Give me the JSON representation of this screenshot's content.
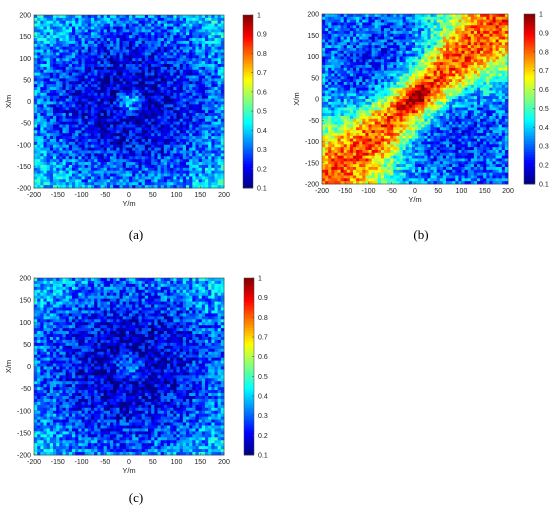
{
  "chart_data": [
    {
      "type": "heatmap",
      "panel_label": "(a)",
      "xlabel": "Y/m",
      "ylabel": "X/m",
      "xlim": [
        -200,
        200
      ],
      "ylim": [
        -200,
        200
      ],
      "xticks": [
        "-200",
        "-150",
        "-100",
        "-50",
        "0",
        "50",
        "100",
        "150",
        "200"
      ],
      "yticks": [
        "200",
        "150",
        "100",
        "50",
        "0",
        "-50",
        "-100",
        "-150",
        "-200"
      ],
      "colorbar": {
        "range": [
          0.1,
          1
        ],
        "ticks": [
          "1",
          "0.9",
          "0.8",
          "0.7",
          "0.6",
          "0.5",
          "0.4",
          "0.3",
          "0.2",
          "0.1"
        ],
        "colormap": "jet"
      },
      "pattern": "radial",
      "center_value": 0.42,
      "dark_ring_value": 0.15,
      "edge_value": 0.4,
      "noise": 0.12
    },
    {
      "type": "heatmap",
      "panel_label": "(b)",
      "xlabel": "Y/m",
      "ylabel": "X/m",
      "xlim": [
        -200,
        200
      ],
      "ylim": [
        -200,
        200
      ],
      "xticks": [
        "-200",
        "-150",
        "-100",
        "-50",
        "0",
        "50",
        "100",
        "150",
        "200"
      ],
      "yticks": [
        "200",
        "150",
        "100",
        "50",
        "0",
        "-50",
        "-100",
        "-150",
        "-200"
      ],
      "colorbar": {
        "range": [
          0.1,
          1
        ],
        "ticks": [
          "1",
          "0.9",
          "0.8",
          "0.7",
          "0.6",
          "0.5",
          "0.4",
          "0.3",
          "0.2",
          "0.1"
        ],
        "colormap": "jet"
      },
      "pattern": "diagonal",
      "center_value": 1.0,
      "band_value": 0.82,
      "background_value": 0.3,
      "noise": 0.12
    },
    {
      "type": "heatmap",
      "panel_label": "(c)",
      "xlabel": "Y/m",
      "ylabel": "X/m",
      "xlim": [
        -200,
        200
      ],
      "ylim": [
        -200,
        200
      ],
      "xticks": [
        "-200",
        "-150",
        "-100",
        "-50",
        "0",
        "50",
        "100",
        "150",
        "200"
      ],
      "yticks": [
        "200",
        "150",
        "100",
        "50",
        "0",
        "-50",
        "-100",
        "-150",
        "-200"
      ],
      "colorbar": {
        "range": [
          0.1,
          1
        ],
        "ticks": [
          "1",
          "0.9",
          "0.8",
          "0.7",
          "0.6",
          "0.5",
          "0.4",
          "0.3",
          "0.2",
          "0.1"
        ],
        "colormap": "jet"
      },
      "pattern": "radial",
      "center_value": 0.38,
      "dark_ring_value": 0.15,
      "edge_value": 0.38,
      "noise": 0.12
    }
  ]
}
